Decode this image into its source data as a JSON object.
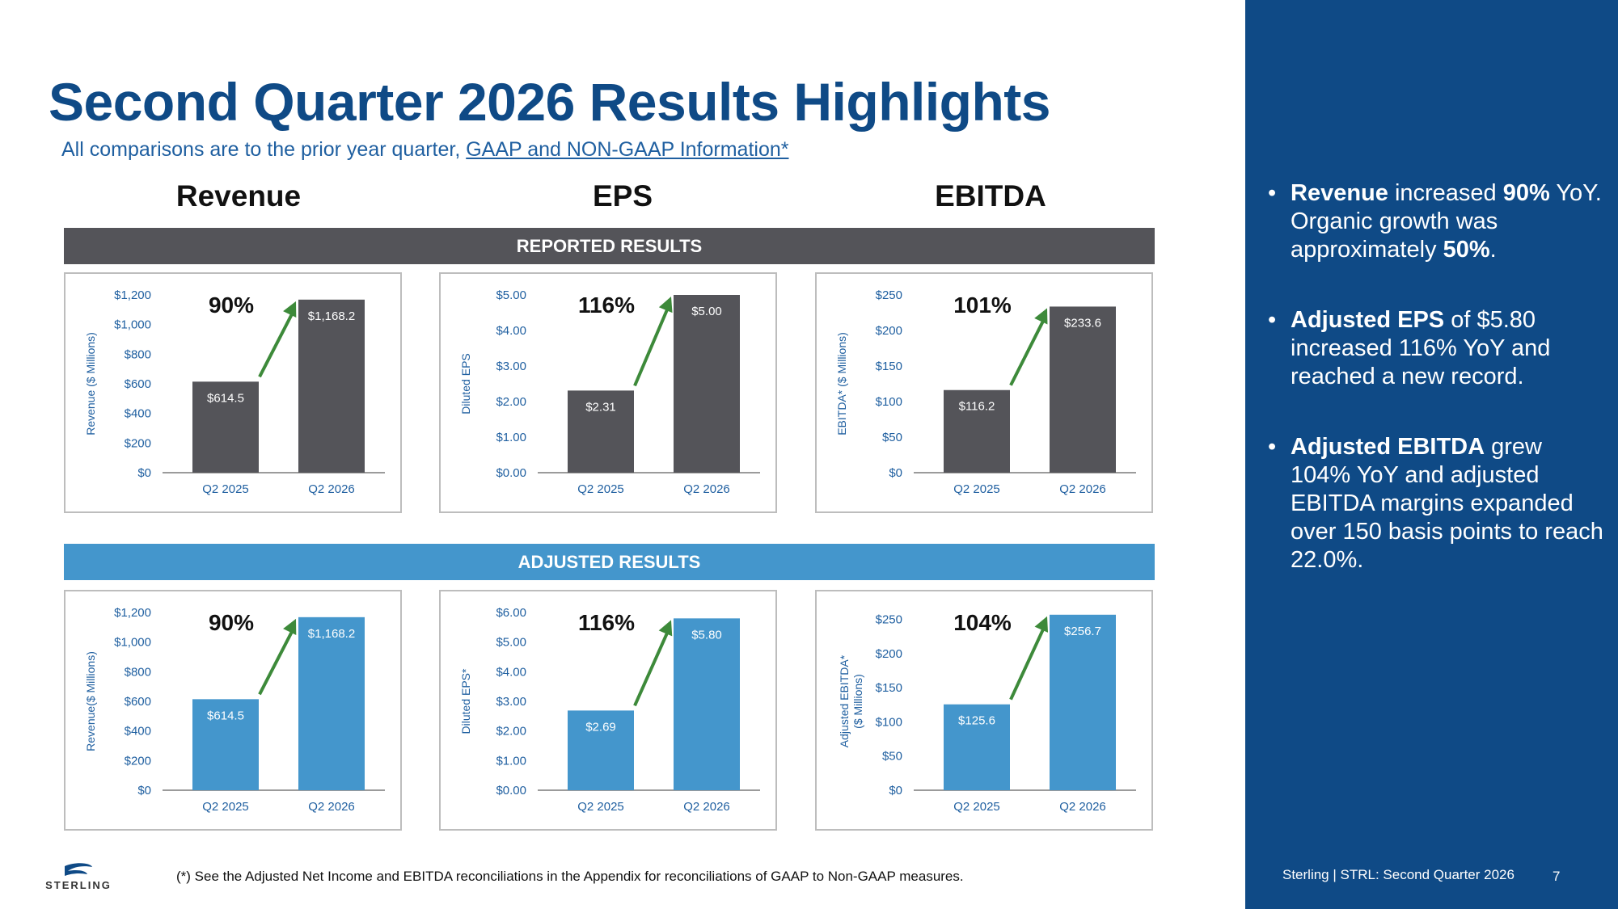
{
  "slide": {
    "title": "Second Quarter 2026 Results Highlights",
    "subtitle_prefix": "All comparisons are to the prior year quarter, ",
    "subtitle_link": "GAAP and NON-GAAP Information*",
    "col_revenue": "Revenue",
    "col_eps": "EPS",
    "col_ebitda": "EBITDA",
    "band_reported": "REPORTED RESULTS",
    "band_adjusted": "ADJUSTED RESULTS",
    "footnote": "(*) See the Adjusted Net Income and EBITDA reconciliations in the Appendix for reconciliations of GAAP to Non-GAAP measures.",
    "logo_text": "STERLING",
    "colors": {
      "brand": "#0f4a86",
      "reported_bar": "#545459",
      "adjusted_bar": "#4496cc",
      "arrow": "#3d8a3a"
    }
  },
  "sidebar": {
    "b1": {
      "s1": "Revenue",
      "s2": " increased ",
      "s3": "90%",
      "s4": " YoY. Organic growth was approximately ",
      "s5": "50%",
      "s6": "."
    },
    "b2": {
      "s1": "Adjusted EPS",
      "s2": " of $5.80 increased 116% YoY and reached a new record."
    },
    "b3": {
      "s1": "Adjusted EBITDA",
      "s2": " grew 104% YoY and adjusted EBITDA margins expanded over 150 basis points to reach 22.0%."
    },
    "footer": "Sterling | STRL:  Second Quarter 2026",
    "page": "7"
  },
  "chart_data": [
    {
      "id": "rev_rep",
      "type": "bar",
      "categories": [
        "Q2 2025",
        "Q2 2026"
      ],
      "values": [
        614.5,
        1168.2
      ],
      "value_labels": [
        "$614.5",
        "$1,168.2"
      ],
      "ylabel": "Revenue ($ Millions)",
      "ylim": [
        0,
        1200
      ],
      "yticks": [
        0,
        200,
        400,
        600,
        800,
        1000,
        1200
      ],
      "ytick_labels": [
        "$0",
        "$200",
        "$400",
        "$600",
        "$800",
        "$1,000",
        "$1,200"
      ],
      "growth": "90%",
      "bar_color": "#545459"
    },
    {
      "id": "eps_rep",
      "type": "bar",
      "categories": [
        "Q2 2025",
        "Q2 2026"
      ],
      "values": [
        2.31,
        5.0
      ],
      "value_labels": [
        "$2.31",
        "$5.00"
      ],
      "ylabel": "Diluted EPS",
      "ylim": [
        0,
        5
      ],
      "yticks": [
        0,
        1,
        2,
        3,
        4,
        5
      ],
      "ytick_labels": [
        "$0.00",
        "$1.00",
        "$2.00",
        "$3.00",
        "$4.00",
        "$5.00"
      ],
      "growth": "116%",
      "bar_color": "#545459"
    },
    {
      "id": "ebitda_rep",
      "type": "bar",
      "categories": [
        "Q2 2025",
        "Q2 2026"
      ],
      "values": [
        116.2,
        233.6
      ],
      "value_labels": [
        "$116.2",
        "$233.6"
      ],
      "ylabel": "EBITDA* ($ Millions)",
      "ylim": [
        0,
        250
      ],
      "yticks": [
        0,
        50,
        100,
        150,
        200,
        250
      ],
      "ytick_labels": [
        "$0",
        "$50",
        "$100",
        "$150",
        "$200",
        "$250"
      ],
      "growth": "101%",
      "bar_color": "#545459"
    },
    {
      "id": "rev_adj",
      "type": "bar",
      "categories": [
        "Q2 2025",
        "Q2 2026"
      ],
      "values": [
        614.5,
        1168.2
      ],
      "value_labels": [
        "$614.5",
        "$1,168.2"
      ],
      "ylabel": "Revenue($ Millions)",
      "ylim": [
        0,
        1200
      ],
      "yticks": [
        0,
        200,
        400,
        600,
        800,
        1000,
        1200
      ],
      "ytick_labels": [
        "$0",
        "$200",
        "$400",
        "$600",
        "$800",
        "$1,000",
        "$1,200"
      ],
      "growth": "90%",
      "bar_color": "#4496cc"
    },
    {
      "id": "eps_adj",
      "type": "bar",
      "categories": [
        "Q2 2025",
        "Q2 2026"
      ],
      "values": [
        2.69,
        5.8
      ],
      "value_labels": [
        "$2.69",
        "$5.80"
      ],
      "ylabel": "Diluted EPS*",
      "ylim": [
        0,
        6
      ],
      "yticks": [
        0,
        1,
        2,
        3,
        4,
        5,
        6
      ],
      "ytick_labels": [
        "$0.00",
        "$1.00",
        "$2.00",
        "$3.00",
        "$4.00",
        "$5.00",
        "$6.00"
      ],
      "growth": "116%",
      "bar_color": "#4496cc"
    },
    {
      "id": "ebitda_adj",
      "type": "bar",
      "categories": [
        "Q2 2025",
        "Q2 2026"
      ],
      "values": [
        125.6,
        256.7
      ],
      "value_labels": [
        "$125.6",
        "$256.7"
      ],
      "ylabel": "Adjusted EBITDA*",
      "ylabel2": "($ Millions)",
      "ylim": [
        0,
        260
      ],
      "yticks": [
        0,
        50,
        100,
        150,
        200,
        250
      ],
      "ytick_labels": [
        "$0",
        "$50",
        "$100",
        "$150",
        "$200",
        "$250"
      ],
      "growth": "104%",
      "bar_color": "#4496cc"
    }
  ]
}
